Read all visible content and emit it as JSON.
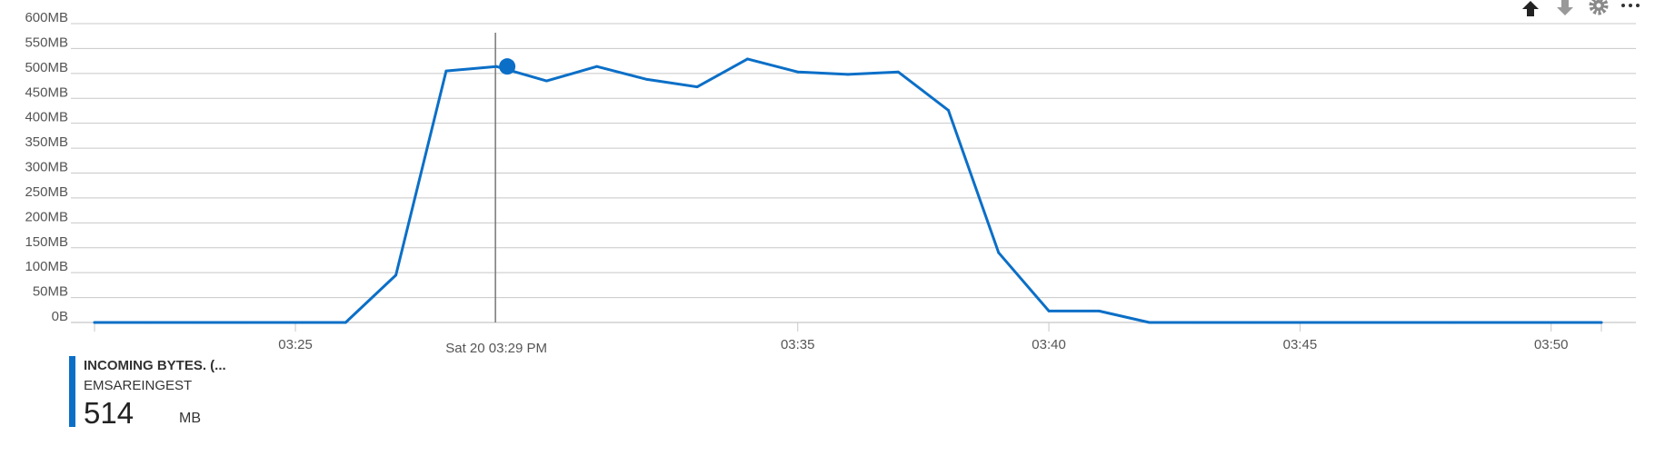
{
  "toolbar": {
    "icons": [
      "arrow-up-icon",
      "arrow-down-icon",
      "gear-icon",
      "more-icon"
    ]
  },
  "colors": {
    "series": "#0b6fc7",
    "grid": "#c8c8c8",
    "axis_text": "#555555",
    "cursor": "#777777"
  },
  "chart_data": {
    "type": "line",
    "title": "",
    "xlabel": "",
    "ylabel": "",
    "ylim": [
      0,
      600
    ],
    "y_ticks": [
      {
        "value": 600,
        "label": "600MB"
      },
      {
        "value": 550,
        "label": "550MB"
      },
      {
        "value": 500,
        "label": "500MB"
      },
      {
        "value": 450,
        "label": "450MB"
      },
      {
        "value": 400,
        "label": "400MB"
      },
      {
        "value": 350,
        "label": "350MB"
      },
      {
        "value": 300,
        "label": "300MB"
      },
      {
        "value": 250,
        "label": "250MB"
      },
      {
        "value": 200,
        "label": "200MB"
      },
      {
        "value": 150,
        "label": "150MB"
      },
      {
        "value": 100,
        "label": "100MB"
      },
      {
        "value": 50,
        "label": "50MB"
      },
      {
        "value": 0,
        "label": "0B"
      }
    ],
    "xlim": [
      "03:21",
      "03:51"
    ],
    "x_ticks": [
      {
        "time": "03:25",
        "label": "03:25"
      },
      {
        "time": "03:35",
        "label": "03:35"
      },
      {
        "time": "03:40",
        "label": "03:40"
      },
      {
        "time": "03:45",
        "label": "03:45"
      },
      {
        "time": "03:50",
        "label": "03:50"
      }
    ],
    "grid": true,
    "series": [
      {
        "name": "INCOMING BYTES. (...",
        "color": "#0b6fc7",
        "points": [
          {
            "x": "03:21",
            "y": 0
          },
          {
            "x": "03:22",
            "y": 0
          },
          {
            "x": "03:23",
            "y": 0
          },
          {
            "x": "03:24",
            "y": 0
          },
          {
            "x": "03:25",
            "y": 0
          },
          {
            "x": "03:26",
            "y": 0
          },
          {
            "x": "03:27",
            "y": 95
          },
          {
            "x": "03:28",
            "y": 505
          },
          {
            "x": "03:29",
            "y": 514
          },
          {
            "x": "03:30",
            "y": 485
          },
          {
            "x": "03:31",
            "y": 514
          },
          {
            "x": "03:32",
            "y": 488
          },
          {
            "x": "03:33",
            "y": 473
          },
          {
            "x": "03:34",
            "y": 529
          },
          {
            "x": "03:35",
            "y": 503
          },
          {
            "x": "03:36",
            "y": 498
          },
          {
            "x": "03:37",
            "y": 503
          },
          {
            "x": "03:38",
            "y": 426
          },
          {
            "x": "03:39",
            "y": 140
          },
          {
            "x": "03:40",
            "y": 23
          },
          {
            "x": "03:41",
            "y": 23
          },
          {
            "x": "03:42",
            "y": 0
          },
          {
            "x": "03:43",
            "y": 0
          },
          {
            "x": "03:44",
            "y": 0
          },
          {
            "x": "03:45",
            "y": 0
          },
          {
            "x": "03:46",
            "y": 0
          },
          {
            "x": "03:47",
            "y": 0
          },
          {
            "x": "03:48",
            "y": 0
          },
          {
            "x": "03:49",
            "y": 0
          },
          {
            "x": "03:50",
            "y": 0
          },
          {
            "x": "03:51",
            "y": 0
          }
        ]
      }
    ],
    "cursor": {
      "time": "03:29",
      "label": "Sat 20 03:29 PM",
      "value": 514
    }
  },
  "legend": {
    "name": "INCOMING BYTES. (...",
    "resource": "EMSAREINGEST",
    "value": "514",
    "unit": "MB"
  }
}
